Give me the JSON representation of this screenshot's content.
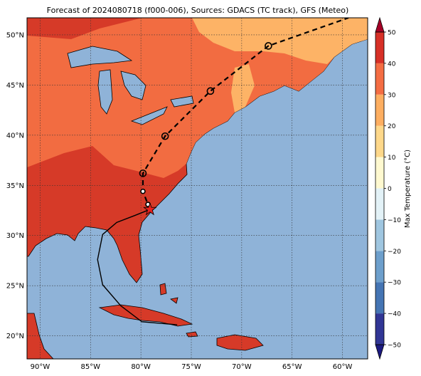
{
  "title": "Forecast of 2024080718 (f000-006), Sources: GDACS (TC track), GFS (Meteo)",
  "map": {
    "lonlim": [
      -91.3,
      -57.5
    ],
    "latlim": [
      17.7,
      51.7
    ],
    "xticks": [
      {
        "value": -90,
        "label": "90°W"
      },
      {
        "value": -85,
        "label": "85°W"
      },
      {
        "value": -80,
        "label": "80°W"
      },
      {
        "value": -75,
        "label": "75°W"
      },
      {
        "value": -70,
        "label": "70°W"
      },
      {
        "value": -65,
        "label": "65°W"
      },
      {
        "value": -60,
        "label": "60°W"
      }
    ],
    "yticks": [
      {
        "value": 20,
        "label": "20°N"
      },
      {
        "value": 25,
        "label": "25°N"
      },
      {
        "value": 30,
        "label": "30°N"
      },
      {
        "value": 35,
        "label": "35°N"
      },
      {
        "value": 40,
        "label": "40°N"
      },
      {
        "value": 45,
        "label": "45°N"
      },
      {
        "value": 50,
        "label": "50°N"
      }
    ],
    "grid": true
  },
  "track": {
    "past": {
      "lon": [
        -76.4,
        -79.9,
        -82.0,
        -83.8,
        -84.3,
        -83.8,
        -82.4,
        -80.6,
        -79.1
      ],
      "lat": [
        21.1,
        21.4,
        23.0,
        25.1,
        27.6,
        30.1,
        31.3,
        32.0,
        32.6
      ]
    },
    "storm_position": {
      "lon": -79.1,
      "lat": 32.6,
      "color": "#e8201c"
    },
    "forecast": {
      "lon": [
        -79.1,
        -79.3,
        -79.8,
        -79.8,
        -77.6,
        -73.1,
        -67.35,
        -59.4
      ],
      "lat": [
        32.6,
        33.1,
        34.4,
        36.2,
        39.9,
        44.4,
        48.9,
        51.7
      ]
    },
    "forecast_circles": {
      "lon": [
        -79.3,
        -79.8,
        -79.8,
        -77.6,
        -73.1,
        -67.35
      ],
      "lat": [
        33.1,
        34.4,
        36.2,
        39.9,
        44.4,
        48.9
      ]
    }
  },
  "colorbar": {
    "label": "Max Temperature (°C)",
    "ticks": [
      {
        "value": -50,
        "label": "−50"
      },
      {
        "value": -40,
        "label": "−40"
      },
      {
        "value": -30,
        "label": "−30"
      },
      {
        "value": -20,
        "label": "−20"
      },
      {
        "value": -10,
        "label": "−10"
      },
      0,
      10,
      20,
      30,
      40,
      50
    ],
    "colors": [
      "#313695",
      "#4575b4",
      "#6d9fcc",
      "#9fc6e0",
      "#e3f2f7",
      "#fff9d0",
      "#fed88a",
      "#fdae61",
      "#f46d43",
      "#d73027"
    ],
    "extend_colors": [
      "#1c1a80",
      "#a50026"
    ]
  }
}
